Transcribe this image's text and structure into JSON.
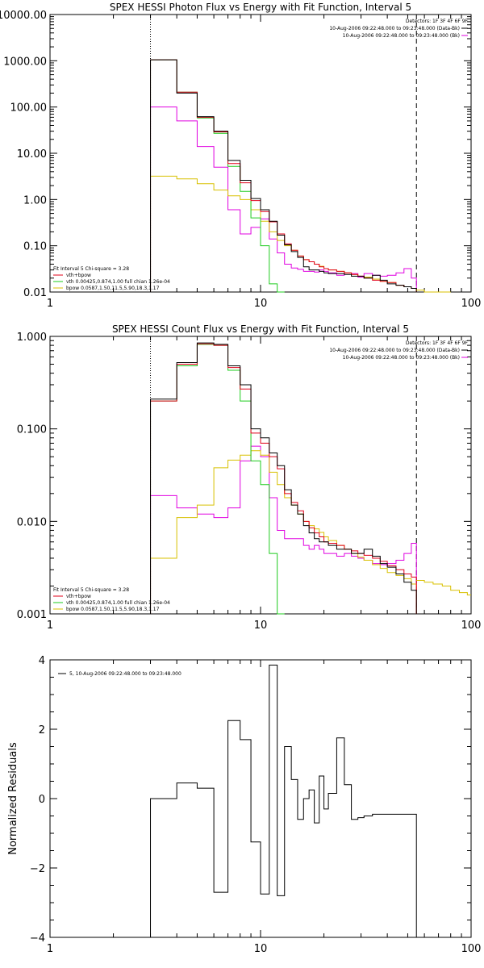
{
  "colors": {
    "data": "#000000",
    "fit_total": "#e0001a",
    "vth": "#1ecc1e",
    "bpow": "#d8c000",
    "background": "#e000e0"
  },
  "chart_data": [
    {
      "type": "line",
      "title": "SPEX HESSI Photon Flux vs Energy with Fit Function, Interval 5",
      "xscale": "log",
      "yscale": "log",
      "xlim": [
        1,
        100
      ],
      "ylim": [
        0.01,
        10000
      ],
      "xticks": [
        "1",
        "10",
        "100"
      ],
      "yticks": [
        "0.01",
        "0.10",
        "1.00",
        "10.00",
        "100.00",
        "1000.00",
        "10000.00"
      ],
      "vlines": [
        {
          "x": 3,
          "style": "dotted"
        },
        {
          "x": 55,
          "style": "dashed"
        }
      ],
      "legend_top_right": [
        "Detectors: 1F 3F 4F 6F 9F",
        "10-Aug-2006 09:22:48.000 to 09:23:48.000 (Data-Bk)",
        "10-Aug-2006 09:22:48.000 to 09:23:48.000 (Bk)"
      ],
      "legend_bottom_left": [
        "Fit Interval 5   Chi-square = 3.28",
        "vth+bpow",
        "vth 0.00425,0.874,1.00  full chian 1.26e-04",
        "bpow 0.0587,1.50,11.5,5.90,18.3,1.17"
      ],
      "x_edges": [
        3,
        4,
        5,
        6,
        7,
        8,
        9,
        10,
        11,
        12,
        13,
        14,
        15,
        16,
        17,
        18,
        19,
        20,
        21,
        23,
        25,
        27,
        29,
        31,
        34,
        37,
        40,
        44,
        48,
        52,
        55
      ],
      "series": [
        {
          "name": "Data-Bk",
          "color_key": "data",
          "values": [
            1050,
            200,
            62,
            30,
            7,
            2.6,
            1.05,
            0.6,
            0.34,
            0.17,
            0.105,
            0.075,
            0.056,
            0.035,
            0.03,
            0.03,
            0.028,
            0.026,
            0.025,
            0.025,
            0.024,
            0.022,
            0.022,
            0.02,
            0.023,
            0.018,
            0.015,
            0.014,
            0.013,
            0.012
          ]
        },
        {
          "name": "vth+bpow",
          "color_key": "fit_total",
          "values": [
            1050,
            210,
            60,
            29,
            6,
            2.3,
            0.95,
            0.55,
            0.33,
            0.18,
            0.11,
            0.08,
            0.06,
            0.05,
            0.045,
            0.04,
            0.035,
            0.032,
            0.03,
            0.028,
            0.026,
            0.024,
            0.022,
            0.02,
            0.018,
            0.017,
            0.016,
            0.014,
            0.013,
            0.012
          ]
        },
        {
          "name": "vth",
          "color_key": "vth",
          "values": [
            1050,
            210,
            58,
            27,
            5.2,
            1.5,
            0.4,
            0.1,
            0.015,
            0.0
          ]
        },
        {
          "name": "bpow",
          "color_key": "bpow",
          "values": [
            3.2,
            2.8,
            2.2,
            1.6,
            1.2,
            1.0,
            0.6,
            0.34,
            0.2,
            0.13,
            0.1,
            0.08,
            0.06,
            0.05,
            0.045,
            0.04,
            0.036,
            0.032,
            0.03,
            0.028,
            0.026,
            0.024,
            0.022,
            0.021,
            0.019,
            0.017,
            0.016,
            0.014,
            0.013,
            0.012
          ]
        },
        {
          "name": "Bk",
          "color_key": "background",
          "values": [
            100,
            50,
            14,
            5,
            0.6,
            0.18,
            0.25,
            0.38,
            0.14,
            0.07,
            0.04,
            0.033,
            0.031,
            0.028,
            0.028,
            0.027,
            0.03,
            0.028,
            0.026,
            0.023,
            0.026,
            0.025,
            0.021,
            0.025,
            0.023,
            0.022,
            0.023,
            0.026,
            0.032,
            0.02
          ]
        }
      ]
    },
    {
      "type": "line",
      "title": "SPEX HESSI Count Flux vs Energy with Fit Function, Interval 5",
      "xscale": "log",
      "yscale": "log",
      "xlim": [
        1,
        100
      ],
      "ylim": [
        0.001,
        1.0
      ],
      "xticks": [
        "1",
        "10",
        "100"
      ],
      "yticks": [
        "0.001",
        "0.010",
        "0.100",
        "1.000"
      ],
      "vlines": [
        {
          "x": 3,
          "style": "dotted"
        },
        {
          "x": 55,
          "style": "dashed"
        }
      ],
      "legend_top_right": [
        "Detectors: 1F 3F 4F 6F 9F",
        "10-Aug-2006 09:22:48.000 to 09:23:48.000 (Data-Bk)",
        "10-Aug-2006 09:22:48.000 to 09:23:48.000 (Bk)"
      ],
      "legend_bottom_left": [
        "Fit Interval 5   Chi-square = 3.28",
        "vth+bpow",
        "vth 0.00425,0.874,1.00  full chian 1.26e-04",
        "bpow 0.0587,1.50,11.5,5.90,18.3,1.17"
      ],
      "x_edges": [
        3,
        4,
        5,
        6,
        7,
        8,
        9,
        10,
        11,
        12,
        13,
        14,
        15,
        16,
        17,
        18,
        19,
        20,
        21,
        23,
        25,
        27,
        29,
        31,
        34,
        37,
        40,
        44,
        48,
        52,
        55
      ],
      "series": [
        {
          "name": "Data-Bk",
          "color_key": "data",
          "values": [
            0.21,
            0.52,
            0.85,
            0.82,
            0.48,
            0.3,
            0.1,
            0.08,
            0.055,
            0.04,
            0.022,
            0.015,
            0.012,
            0.009,
            0.0075,
            0.0065,
            0.006,
            0.006,
            0.0055,
            0.005,
            0.005,
            0.0045,
            0.0045,
            0.005,
            0.0042,
            0.0035,
            0.0032,
            0.0027,
            0.0022,
            0.0018
          ]
        },
        {
          "name": "vth+bpow",
          "color_key": "fit_total",
          "values": [
            0.2,
            0.5,
            0.83,
            0.8,
            0.46,
            0.27,
            0.09,
            0.07,
            0.05,
            0.037,
            0.02,
            0.016,
            0.013,
            0.01,
            0.0085,
            0.0075,
            0.0068,
            0.006,
            0.0058,
            0.0055,
            0.005,
            0.0048,
            0.0045,
            0.0043,
            0.004,
            0.0037,
            0.0033,
            0.003,
            0.0027,
            0.0025
          ]
        },
        {
          "name": "vth",
          "color_key": "vth",
          "values": [
            0.2,
            0.48,
            0.82,
            0.8,
            0.43,
            0.2,
            0.045,
            0.025,
            0.0045,
            0.0005
          ]
        },
        {
          "name": "bpow",
          "color_key": "bpow",
          "values": [
            0.004,
            0.011,
            0.015,
            0.038,
            0.046,
            0.052,
            0.058,
            0.052,
            0.034,
            0.025,
            0.018,
            0.015,
            0.012,
            0.01,
            0.009,
            0.0083,
            0.0076,
            0.0068,
            0.0062,
            0.0055,
            0.005,
            0.0045,
            0.0041,
            0.0038,
            0.0034,
            0.0031,
            0.0028,
            0.0026,
            0.0024,
            0.0021
          ]
        },
        {
          "name": "Bk",
          "color_key": "background",
          "values": [
            0.019,
            0.014,
            0.012,
            0.011,
            0.014,
            0.045,
            0.065,
            0.05,
            0.018,
            0.008,
            0.0065,
            0.0065,
            0.0065,
            0.0055,
            0.005,
            0.0055,
            0.005,
            0.0045,
            0.0045,
            0.0042,
            0.0045,
            0.0042,
            0.004,
            0.0038,
            0.0035,
            0.0034,
            0.0035,
            0.0038,
            0.0045,
            0.0058
          ]
        }
      ]
    },
    {
      "type": "line",
      "title": "",
      "ylabel": "Normalized Residuals",
      "xscale": "log",
      "yscale": "linear",
      "xlim": [
        1,
        100
      ],
      "ylim": [
        -4,
        4
      ],
      "xticks": [
        "1",
        "10",
        "100"
      ],
      "yticks": [
        "−4",
        "−2",
        "0",
        "2",
        "4"
      ],
      "legend_top_left": [
        "5, 10-Aug-2006 09:22:48.000 to 09:23:48.000"
      ],
      "x_edges": [
        3,
        4,
        5,
        6,
        7,
        8,
        9,
        10,
        11,
        12,
        13,
        14,
        15,
        16,
        17,
        18,
        19,
        20,
        21,
        23,
        25,
        27,
        29,
        31,
        34,
        37,
        40,
        44,
        48,
        52,
        55
      ],
      "series": [
        {
          "name": "5, 10-Aug-2006 09:22:48.000 to 09:23:48.000",
          "color_key": "data",
          "values": [
            0.0,
            0.45,
            0.3,
            -2.7,
            2.25,
            1.7,
            -1.25,
            -2.75,
            3.85,
            -2.8,
            1.5,
            0.55,
            -0.6,
            0.0,
            0.25,
            -0.7,
            0.65,
            -0.3,
            0.15,
            1.75,
            0.4,
            -0.6,
            -0.55,
            -0.5,
            -0.45,
            -0.45,
            -0.45,
            -0.45,
            -0.45,
            -0.45
          ]
        }
      ]
    }
  ]
}
